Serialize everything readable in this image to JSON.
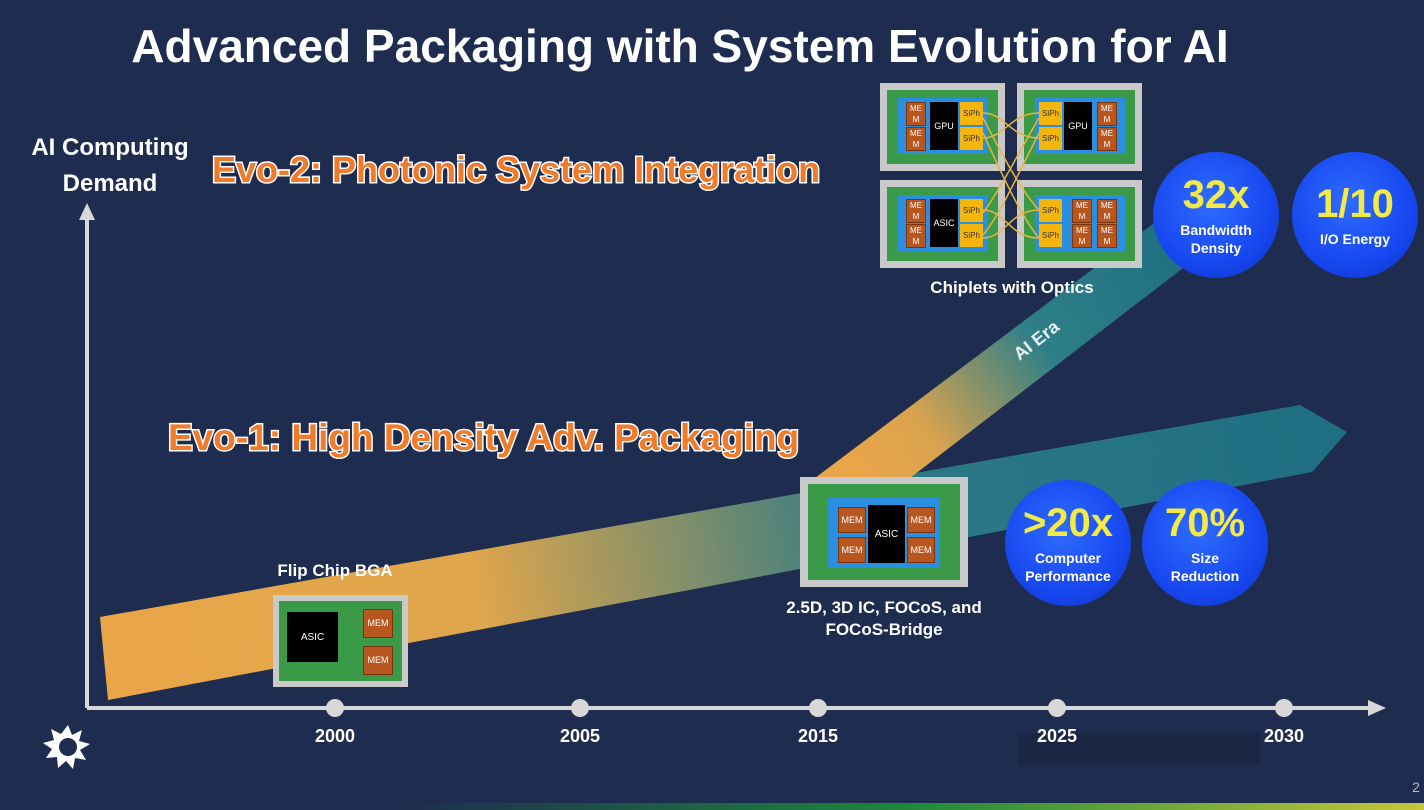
{
  "title": "Advanced Packaging with System Evolution for AI",
  "y_axis_label": "AI Computing Demand",
  "evo2": "Evo-2: Photonic System Integration",
  "evo1": "Evo-1: High Density Adv. Packaging",
  "ai_era": "AI Era",
  "timeline": [
    "2000",
    "2005",
    "2015",
    "2025",
    "2030"
  ],
  "packages": [
    {
      "caption": "Flip Chip BGA",
      "chips": [
        "ASIC",
        "MEM",
        "MEM"
      ]
    },
    {
      "caption": "2.5D, 3D IC, FOCoS, and FOCoS-Bridge",
      "chips": [
        "MEM",
        "MEM",
        "ASIC",
        "MEM",
        "MEM"
      ]
    },
    {
      "caption": "Chiplets with Optics",
      "modules": [
        [
          "MEM",
          "MEM",
          "GPU",
          "SiPh",
          "SiPh"
        ],
        [
          "SiPh",
          "SiPh",
          "GPU",
          "MEM",
          "MEM"
        ],
        [
          "MEM",
          "MEM",
          "ASIC",
          "SiPh",
          "SiPh"
        ],
        [
          "SiPh",
          "SiPh",
          "MEM",
          "MEM",
          "MEM",
          "MEM"
        ]
      ]
    }
  ],
  "stats": [
    {
      "value": "32x",
      "label": "Bandwidth Density"
    },
    {
      "value": "1/10",
      "label": "I/O Energy"
    },
    {
      "value": ">20x",
      "label": "Computer Performance"
    },
    {
      "value": "70%",
      "label": "Size Reduction"
    }
  ],
  "page_number": "2"
}
